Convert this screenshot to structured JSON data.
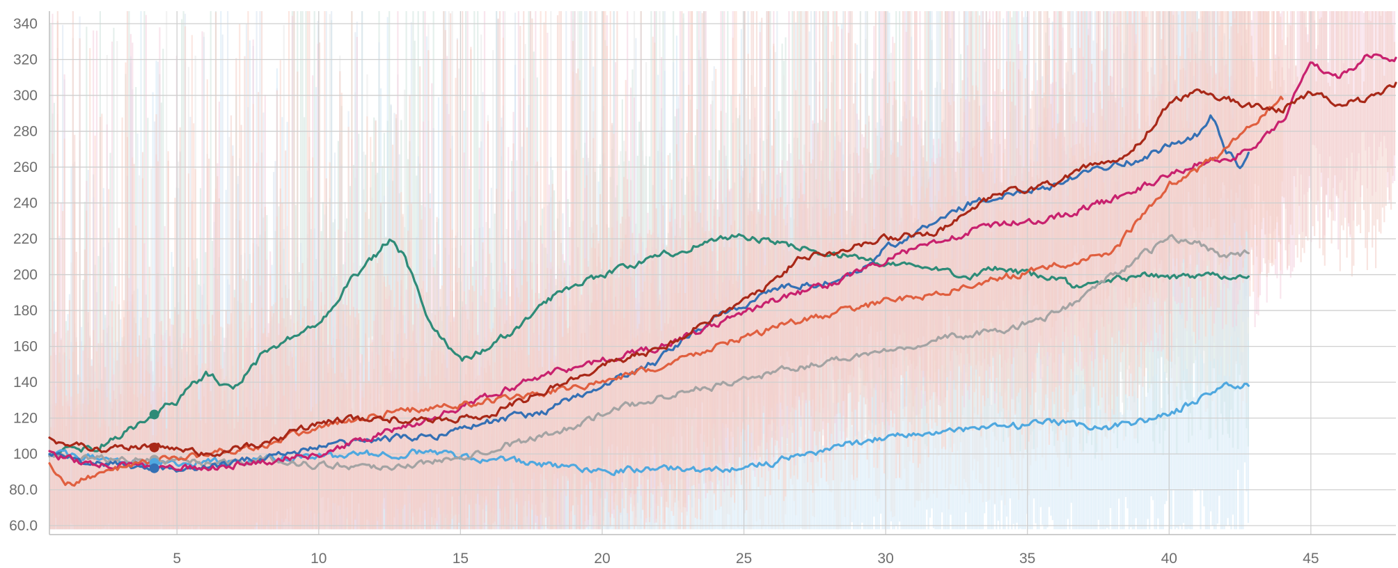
{
  "chart_data": {
    "type": "line",
    "title": "",
    "xlabel": "",
    "ylabel": "",
    "xlim": [
      0.5,
      48.0
    ],
    "ylim": [
      55,
      347
    ],
    "grid": true,
    "legend": "none",
    "x_ticks": [
      {
        "value": 5,
        "label": "5"
      },
      {
        "value": 10,
        "label": "10"
      },
      {
        "value": 15,
        "label": "15"
      },
      {
        "value": 20,
        "label": "20"
      },
      {
        "value": 25,
        "label": "25"
      },
      {
        "value": 30,
        "label": "30"
      },
      {
        "value": 35,
        "label": "35"
      },
      {
        "value": 40,
        "label": "40"
      },
      {
        "value": 45,
        "label": "45"
      }
    ],
    "y_ticks": [
      {
        "value": 60,
        "label": "60.0"
      },
      {
        "value": 80,
        "label": "80.0"
      },
      {
        "value": 100,
        "label": "100"
      },
      {
        "value": 120,
        "label": "120"
      },
      {
        "value": 140,
        "label": "140"
      },
      {
        "value": 160,
        "label": "160"
      },
      {
        "value": 180,
        "label": "180"
      },
      {
        "value": 200,
        "label": "200"
      },
      {
        "value": 220,
        "label": "220"
      },
      {
        "value": 240,
        "label": "240"
      },
      {
        "value": 260,
        "label": "260"
      },
      {
        "value": 280,
        "label": "280"
      },
      {
        "value": 300,
        "label": "300"
      },
      {
        "value": 320,
        "label": "320"
      },
      {
        "value": 340,
        "label": "340"
      }
    ],
    "markers_at_x": 4.2,
    "series": [
      {
        "key": "green",
        "color": "#2e8b78",
        "band": "#cfe3dc",
        "x": [
          0.5,
          2,
          3,
          4,
          5,
          6,
          7,
          8,
          9,
          10,
          11,
          12,
          12.5,
          13,
          14,
          15,
          16,
          17,
          18,
          19,
          20,
          21,
          22,
          23,
          24,
          25,
          26,
          27,
          28,
          29,
          30,
          31,
          32,
          33,
          34,
          35,
          36,
          37,
          38,
          39,
          40,
          41,
          42,
          42.8
        ],
        "y": [
          100,
          103,
          110,
          120,
          130,
          145,
          135,
          155,
          165,
          172,
          195,
          210,
          220,
          210,
          170,
          152,
          160,
          170,
          185,
          195,
          200,
          205,
          210,
          215,
          220,
          222,
          218,
          215,
          212,
          210,
          205,
          205,
          202,
          200,
          203,
          200,
          198,
          192,
          197,
          200,
          198,
          200,
          200,
          199
        ]
      },
      {
        "key": "lightblue",
        "color": "#4fa8df",
        "band": "#d2e8f6",
        "x": [
          0.5,
          2,
          4,
          6,
          8,
          10,
          12,
          14,
          16,
          18,
          20,
          22,
          24,
          26,
          28,
          30,
          32,
          34,
          36,
          38,
          40,
          41,
          42,
          42.8
        ],
        "y": [
          100,
          98,
          95,
          95,
          97,
          98,
          100,
          101,
          97,
          94,
          91,
          92,
          91,
          95,
          103,
          110,
          112,
          115,
          117,
          115,
          122,
          130,
          139,
          138
        ]
      },
      {
        "key": "gray",
        "color": "#a3a3a3",
        "band": "#e8e8e8",
        "x": [
          0.5,
          2,
          4,
          6,
          8,
          10,
          12,
          14,
          16,
          18,
          20,
          22,
          24,
          26,
          28,
          30,
          32,
          34,
          36,
          37,
          38,
          39,
          40,
          41,
          42,
          42.8
        ],
        "y": [
          100,
          97,
          97,
          95,
          97,
          94,
          93,
          95,
          103,
          110,
          122,
          132,
          138,
          145,
          152,
          158,
          165,
          168,
          178,
          188,
          200,
          210,
          220,
          218,
          210,
          212
        ]
      },
      {
        "key": "blue",
        "color": "#3470b4",
        "band": "#d8e3f1",
        "x": [
          0.5,
          2,
          4,
          6,
          8,
          10,
          12,
          14,
          16,
          18,
          20,
          22,
          23,
          24,
          25,
          26,
          28,
          29,
          30,
          31,
          32,
          33,
          34,
          35,
          36,
          37,
          38,
          39,
          40,
          41,
          41.5,
          42,
          42.5,
          42.8
        ],
        "y": [
          100,
          95,
          92,
          92,
          98,
          104,
          108,
          110,
          118,
          124,
          138,
          152,
          165,
          176,
          183,
          192,
          196,
          200,
          215,
          222,
          232,
          240,
          243,
          248,
          250,
          258,
          262,
          264,
          272,
          278,
          290,
          270,
          260,
          268
        ]
      },
      {
        "key": "magenta",
        "color": "#c8216e",
        "band": "#f4d0de",
        "x": [
          0.5,
          2,
          4,
          6,
          8,
          10,
          12,
          14,
          16,
          18,
          20,
          22,
          24,
          26,
          28,
          30,
          32,
          34,
          36,
          38,
          40,
          41,
          42,
          43,
          44,
          45,
          46,
          47,
          48
        ],
        "y": [
          100,
          94,
          93,
          92,
          96,
          100,
          110,
          120,
          132,
          145,
          152,
          160,
          172,
          185,
          195,
          208,
          220,
          228,
          232,
          242,
          255,
          262,
          265,
          270,
          285,
          318,
          310,
          322,
          321
        ]
      },
      {
        "key": "orange",
        "color": "#e05f3f",
        "band": "#f9d3c8",
        "x": [
          0.5,
          1,
          2,
          4,
          6,
          8,
          10,
          12,
          14,
          16,
          18,
          20,
          22,
          24,
          26,
          28,
          30,
          32,
          34,
          36,
          38,
          39,
          40,
          41,
          42,
          43,
          44
        ],
        "y": [
          95,
          82,
          88,
          95,
          100,
          105,
          115,
          122,
          126,
          129,
          134,
          140,
          148,
          160,
          170,
          178,
          185,
          190,
          198,
          205,
          212,
          232,
          250,
          258,
          270,
          285,
          298
        ]
      },
      {
        "key": "darkred",
        "color": "#a82818",
        "band": "#f3cdc6",
        "x": [
          0.5,
          2,
          4,
          6,
          8,
          10,
          12,
          14,
          16,
          18,
          20,
          22,
          24,
          26,
          27,
          28,
          30,
          31,
          32,
          33,
          34,
          35,
          36,
          37,
          38,
          39,
          40,
          41,
          42,
          43,
          44,
          45,
          46,
          47,
          48
        ],
        "y": [
          108,
          103,
          104,
          100,
          105,
          118,
          120,
          118,
          122,
          135,
          150,
          158,
          177,
          195,
          210,
          213,
          220,
          222,
          225,
          235,
          245,
          248,
          250,
          260,
          262,
          275,
          295,
          303,
          298,
          294,
          292,
          302,
          295,
          298,
          307
        ]
      }
    ]
  }
}
